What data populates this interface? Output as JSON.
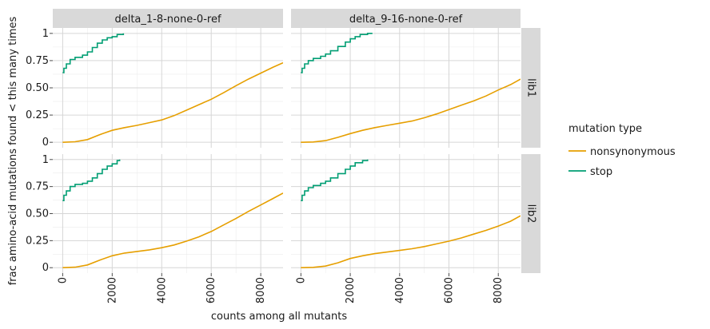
{
  "chart_data": {
    "type": "line",
    "subtype": "step-ecdf, faceted 2x2",
    "xlabel": "counts among all mutants",
    "ylabel": "frac amino-acid mutations found < this many times",
    "xlim": [
      -400,
      8900
    ],
    "ylim": [
      -0.05,
      1.05
    ],
    "xticks": [
      0,
      2000,
      4000,
      6000,
      8000
    ],
    "xtick_labels": [
      "0",
      "2000",
      "4000",
      "6000",
      "8000"
    ],
    "yticks": [
      0,
      0.25,
      0.5,
      0.75,
      1
    ],
    "ytick_labels": [
      "0",
      "0.25",
      "0.50",
      "0.75",
      "1"
    ],
    "columns": [
      "delta_1-8-none-0-ref",
      "delta_9-16-none-0-ref"
    ],
    "rows": [
      "lib1",
      "lib2"
    ],
    "legend": {
      "title": "mutation type",
      "position": "right",
      "entries": [
        {
          "name": "nonsynonymous",
          "color": "#E69F00"
        },
        {
          "name": "stop",
          "color": "#009E73"
        }
      ]
    },
    "panels": [
      {
        "column": "delta_1-8-none-0-ref",
        "row": "lib1",
        "series": [
          {
            "name": "nonsynonymous",
            "x": [
              0,
              500,
              1000,
              1500,
              2000,
              2500,
              3000,
              3500,
              4000,
              4500,
              5000,
              5500,
              6000,
              6500,
              7000,
              7500,
              8000,
              8500,
              8900
            ],
            "y": [
              0,
              0.005,
              0.025,
              0.07,
              0.11,
              0.135,
              0.155,
              0.18,
              0.205,
              0.245,
              0.295,
              0.345,
              0.395,
              0.455,
              0.52,
              0.58,
              0.635,
              0.69,
              0.73
            ]
          },
          {
            "name": "stop",
            "x": [
              0,
              50,
              150,
              300,
              500,
              800,
              1000,
              1200,
              1400,
              1600,
              1800,
              2000,
              2200,
              2450
            ],
            "y": [
              0.64,
              0.68,
              0.72,
              0.76,
              0.78,
              0.8,
              0.83,
              0.87,
              0.91,
              0.94,
              0.96,
              0.97,
              0.99,
              1.0
            ]
          }
        ]
      },
      {
        "column": "delta_9-16-none-0-ref",
        "row": "lib1",
        "series": [
          {
            "name": "nonsynonymous",
            "x": [
              0,
              500,
              1000,
              1500,
              2000,
              2500,
              3000,
              3500,
              4000,
              4500,
              5000,
              5500,
              6000,
              6500,
              7000,
              7500,
              8000,
              8500,
              8900
            ],
            "y": [
              0,
              0.003,
              0.015,
              0.045,
              0.08,
              0.11,
              0.135,
              0.155,
              0.175,
              0.195,
              0.225,
              0.26,
              0.3,
              0.34,
              0.38,
              0.425,
              0.48,
              0.53,
              0.58
            ]
          },
          {
            "name": "stop",
            "x": [
              0,
              50,
              150,
              300,
              500,
              800,
              1000,
              1200,
              1500,
              1800,
              2000,
              2200,
              2400,
              2700,
              2900
            ],
            "y": [
              0.64,
              0.68,
              0.72,
              0.75,
              0.77,
              0.79,
              0.81,
              0.84,
              0.88,
              0.92,
              0.95,
              0.97,
              0.99,
              1.0,
              1.0
            ]
          }
        ]
      },
      {
        "column": "delta_1-8-none-0-ref",
        "row": "lib2",
        "series": [
          {
            "name": "nonsynonymous",
            "x": [
              0,
              500,
              1000,
              1500,
              2000,
              2500,
              3000,
              3500,
              4000,
              4500,
              5000,
              5500,
              6000,
              6500,
              7000,
              7500,
              8000,
              8500,
              8900
            ],
            "y": [
              0,
              0.005,
              0.025,
              0.07,
              0.11,
              0.135,
              0.15,
              0.165,
              0.185,
              0.21,
              0.245,
              0.285,
              0.335,
              0.395,
              0.455,
              0.52,
              0.58,
              0.64,
              0.69
            ]
          },
          {
            "name": "stop",
            "x": [
              0,
              50,
              150,
              300,
              500,
              800,
              1000,
              1200,
              1400,
              1600,
              1800,
              2000,
              2200,
              2300
            ],
            "y": [
              0.62,
              0.67,
              0.71,
              0.75,
              0.77,
              0.78,
              0.8,
              0.83,
              0.87,
              0.91,
              0.94,
              0.96,
              0.99,
              1.0
            ]
          }
        ]
      },
      {
        "column": "delta_9-16-none-0-ref",
        "row": "lib2",
        "series": [
          {
            "name": "nonsynonymous",
            "x": [
              0,
              500,
              1000,
              1500,
              2000,
              2500,
              3000,
              3500,
              4000,
              4500,
              5000,
              5500,
              6000,
              6500,
              7000,
              7500,
              8000,
              8500,
              8900
            ],
            "y": [
              0,
              0.003,
              0.015,
              0.045,
              0.085,
              0.11,
              0.13,
              0.145,
              0.16,
              0.175,
              0.195,
              0.22,
              0.245,
              0.275,
              0.31,
              0.345,
              0.385,
              0.43,
              0.48
            ]
          },
          {
            "name": "stop",
            "x": [
              0,
              50,
              150,
              300,
              500,
              800,
              1000,
              1200,
              1500,
              1800,
              2000,
              2200,
              2500,
              2700
            ],
            "y": [
              0.62,
              0.67,
              0.71,
              0.74,
              0.76,
              0.78,
              0.8,
              0.83,
              0.87,
              0.91,
              0.94,
              0.97,
              0.99,
              1.0
            ]
          }
        ]
      }
    ]
  }
}
